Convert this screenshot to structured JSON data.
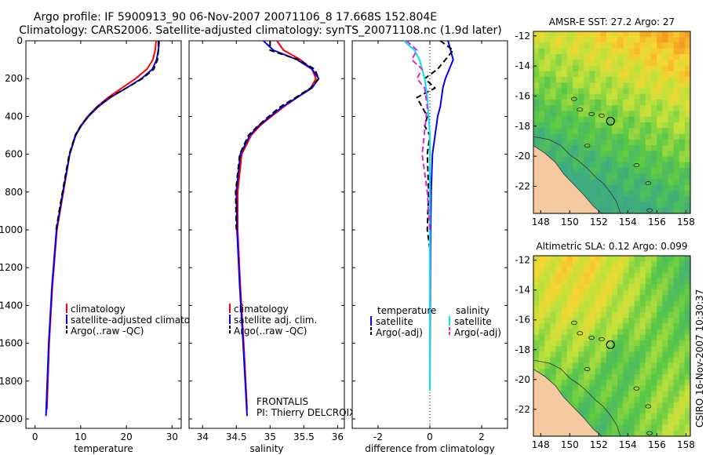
{
  "header": {
    "title_line1": "Argo profile: IF 5900913_90 06-Nov-2007 20071106_8 17.668S 152.804E",
    "title_line2": "Climatology: CARS2006. Satellite-adjusted climatology: synTS_20071108.nc (1.9d later)"
  },
  "footer_stamp": "CSIRO 16-Nov-2007 10:30:37",
  "colors": {
    "red": "#ff0000",
    "blue": "#0000ff",
    "black": "#000000",
    "cyan": "#00e5ee",
    "magenta": "#e020e0",
    "land": "#f5c9a0"
  },
  "chart_data": [
    {
      "type": "line",
      "name": "temperature-profile",
      "xlabel": "temperature",
      "xlim": [
        -2,
        32
      ],
      "xticks": [
        0,
        10,
        20,
        30
      ],
      "ylim": [
        0,
        2050
      ],
      "yticks": [
        0,
        200,
        400,
        600,
        800,
        1000,
        1200,
        1400,
        1600,
        1800,
        2000
      ],
      "legend": {
        "position": "lower-right",
        "entries": [
          "climatology",
          "satellite-adjusted climatology",
          "Argo(..raw -QC)"
        ]
      },
      "series": [
        {
          "name": "climatology",
          "color": "#ff0000",
          "dash": "solid",
          "x": [
            26.5,
            26.3,
            25.8,
            24.5,
            22,
            19,
            16,
            13.5,
            11.5,
            10,
            8.8,
            7.6,
            6.2,
            4.8,
            3.8,
            3.1,
            2.6
          ],
          "y": [
            0,
            50,
            100,
            150,
            200,
            250,
            300,
            350,
            400,
            450,
            500,
            600,
            800,
            1000,
            1300,
            1600,
            1950
          ]
        },
        {
          "name": "satellite-adjusted climatology",
          "color": "#0000ff",
          "dash": "solid",
          "x": [
            27.2,
            27.0,
            26.6,
            25.7,
            23.3,
            20.0,
            16.5,
            13.8,
            11.7,
            10.1,
            8.9,
            7.6,
            6.1,
            4.7,
            3.7,
            3.0,
            2.4
          ],
          "y": [
            0,
            50,
            100,
            150,
            200,
            250,
            300,
            350,
            400,
            450,
            500,
            600,
            800,
            1000,
            1300,
            1600,
            1985
          ]
        },
        {
          "name": "Argo(..raw -QC)",
          "color": "#000000",
          "dash": "dashed",
          "x": [
            27.0,
            27.0,
            26.8,
            26.0,
            23.5,
            20.0,
            16.3,
            13.6,
            11.6,
            10.0,
            8.8,
            7.5,
            6.0,
            4.6
          ],
          "y": [
            0,
            50,
            100,
            150,
            200,
            250,
            300,
            350,
            400,
            450,
            500,
            600,
            800,
            1000
          ]
        }
      ]
    },
    {
      "type": "line",
      "name": "salinity-profile",
      "xlabel": "salinity",
      "xlim": [
        33.8,
        36.1
      ],
      "xticks": [
        34,
        34.5,
        35,
        35.5,
        36
      ],
      "ylim": [
        0,
        2050
      ],
      "legend": {
        "position": "lower-right",
        "entries": [
          "climatology",
          "satellite adj. clim.",
          "Argo(..raw -QC)"
        ]
      },
      "annotations": [
        "FRONTALIS",
        "PI: Thierry DELCROIX"
      ],
      "series": [
        {
          "name": "climatology",
          "color": "#ff0000",
          "dash": "solid",
          "x": [
            35.1,
            35.2,
            35.45,
            35.62,
            35.68,
            35.6,
            35.4,
            35.2,
            35.02,
            34.85,
            34.72,
            34.58,
            34.52,
            34.52,
            34.56,
            34.61,
            34.66
          ],
          "y": [
            0,
            50,
            100,
            150,
            200,
            250,
            300,
            350,
            400,
            450,
            500,
            600,
            800,
            1000,
            1300,
            1600,
            1950
          ]
        },
        {
          "name": "satellite adj. clim.",
          "color": "#0000ff",
          "dash": "solid",
          "x": [
            34.9,
            35.05,
            35.4,
            35.62,
            35.72,
            35.62,
            35.4,
            35.18,
            35.0,
            34.83,
            34.7,
            34.56,
            34.5,
            34.51,
            34.55,
            34.6,
            34.66
          ],
          "y": [
            0,
            50,
            100,
            150,
            200,
            250,
            300,
            350,
            400,
            450,
            500,
            600,
            800,
            1000,
            1300,
            1600,
            1985
          ]
        },
        {
          "name": "Argo(..raw -QC)",
          "color": "#000000",
          "dash": "dashed",
          "x": [
            35.0,
            35.0,
            35.42,
            35.66,
            35.72,
            35.6,
            35.38,
            35.15,
            34.98,
            34.82,
            34.68,
            34.55,
            34.49,
            34.5
          ],
          "y": [
            0,
            50,
            100,
            150,
            200,
            250,
            300,
            350,
            400,
            450,
            500,
            600,
            800,
            1000
          ]
        }
      ]
    },
    {
      "type": "line",
      "name": "difference-profile",
      "xlabel": "difference from climatology",
      "xlim": [
        -3,
        3
      ],
      "xticks": [
        -2,
        0,
        2
      ],
      "ylim": [
        0,
        2050
      ],
      "legend": {
        "position": "lower-right",
        "columns": [
          {
            "heading": "temperature",
            "entries": [
              "satellite",
              "Argo(-adj)"
            ]
          },
          {
            "heading": "salinity",
            "entries": [
              "satellite",
              "Argo(-adj)"
            ]
          }
        ]
      },
      "series": [
        {
          "name": "temperature satellite",
          "color": "#0000ff",
          "dash": "solid",
          "x": [
            0.7,
            0.8,
            0.9,
            0.75,
            0.6,
            0.5,
            0.45,
            0.4,
            0.3,
            0.25,
            0.2,
            0.1,
            0.05,
            0.02,
            0.0
          ],
          "y": [
            0,
            50,
            100,
            150,
            200,
            250,
            300,
            350,
            400,
            450,
            500,
            600,
            800,
            1100,
            1850
          ]
        },
        {
          "name": "temperature Argo(-adj)",
          "color": "#000000",
          "dash": "dashed",
          "x": [
            0.4,
            0.9,
            0.6,
            0.3,
            -0.2,
            0.2,
            -0.5,
            -0.3,
            -0.1,
            -0.2,
            0.0,
            -0.1,
            -0.05,
            -0.1,
            0.0
          ],
          "y": [
            0,
            50,
            100,
            150,
            200,
            250,
            300,
            350,
            400,
            450,
            500,
            600,
            800,
            1000,
            1100
          ]
        },
        {
          "name": "salinity satellite",
          "color": "#00e5ee",
          "dash": "solid",
          "x": [
            -1.0,
            -0.6,
            -0.4,
            -0.2,
            -0.1,
            -0.05,
            0.0,
            0.0,
            0.0,
            0.0
          ],
          "y": [
            0,
            50,
            100,
            200,
            300,
            400,
            500,
            800,
            1200,
            1850
          ]
        },
        {
          "name": "salinity Argo(-adj)",
          "color": "#e020e0",
          "dash": "dashed",
          "x": [
            -0.9,
            -0.5,
            -0.7,
            -0.3,
            -0.5,
            -0.2,
            -0.1,
            -0.3,
            -0.1,
            0.0
          ],
          "y": [
            0,
            50,
            100,
            150,
            200,
            250,
            350,
            600,
            800,
            1000
          ]
        }
      ]
    },
    {
      "type": "heatmap",
      "name": "sst-map",
      "title": "AMSR-E SST: 27.2 Argo: 27",
      "xticks": [
        148,
        150,
        152,
        154,
        156,
        158
      ],
      "yticks": [
        -12,
        -14,
        -16,
        -18,
        -20,
        -22
      ],
      "xlim": [
        147.5,
        158.3
      ],
      "ylim": [
        -23.8,
        -11.7
      ],
      "argo_position": {
        "lon": 152.804,
        "lat": -17.668
      }
    },
    {
      "type": "heatmap",
      "name": "sla-map",
      "title": "Altimetric SLA: 0.12 Argo: 0.099",
      "xticks": [
        148,
        150,
        152,
        154,
        156,
        158
      ],
      "yticks": [
        -12,
        -14,
        -16,
        -18,
        -20,
        -22
      ],
      "xlim": [
        147.5,
        158.3
      ],
      "ylim": [
        -23.8,
        -11.7
      ],
      "argo_position": {
        "lon": 152.804,
        "lat": -17.668
      }
    }
  ]
}
